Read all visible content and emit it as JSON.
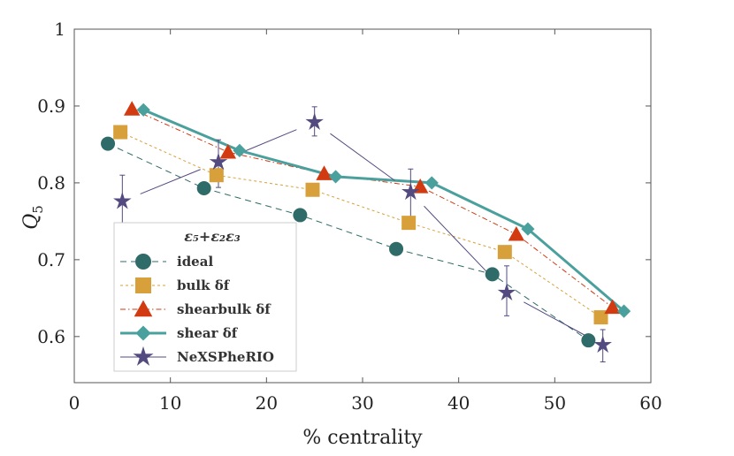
{
  "chart_data": {
    "type": "line",
    "title": "",
    "xlabel": "% centrality",
    "ylabel": "Q",
    "ylabel_sub": "5",
    "xlim": [
      0,
      60
    ],
    "ylim": [
      0.54,
      1.0
    ],
    "xticks": [
      0,
      10,
      20,
      30,
      40,
      50,
      60
    ],
    "xtick_labels": [
      "0",
      "10",
      "20",
      "30",
      "40",
      "50",
      "60"
    ],
    "yticks": [
      0.6,
      0.7,
      0.8,
      0.9,
      1.0
    ],
    "ytick_labels": [
      "0.6",
      "0.7",
      "0.8",
      "0.9",
      "1"
    ],
    "grid": false,
    "legend_position": "bottom-left",
    "legend_title": "ε₅+ε₂ε₃",
    "series": [
      {
        "name": "ideal",
        "marker": "circle",
        "color": "#2f6b68",
        "line_style": "dashed",
        "x": [
          3.5,
          13.5,
          23.5,
          33.5,
          43.5,
          53.5
        ],
        "y": [
          0.851,
          0.793,
          0.758,
          0.714,
          0.681,
          0.595
        ]
      },
      {
        "name": "bulk δf",
        "marker": "square",
        "color": "#d8a03a",
        "line_style": "dotted",
        "x": [
          4.8,
          14.8,
          24.8,
          34.8,
          44.8,
          54.8
        ],
        "y": [
          0.866,
          0.81,
          0.791,
          0.748,
          0.71,
          0.625
        ]
      },
      {
        "name": "shearbulk δf",
        "marker": "triangle",
        "color": "#d23a12",
        "line_style": "dashdot",
        "x": [
          6,
          16,
          26,
          36,
          46,
          56
        ],
        "y": [
          0.896,
          0.84,
          0.812,
          0.795,
          0.733,
          0.638
        ]
      },
      {
        "name": "shear δf",
        "marker": "diamond",
        "color": "#4aa09c",
        "line_style": "solid",
        "x": [
          7.2,
          17.2,
          27.2,
          37.2,
          47.2,
          57.2
        ],
        "y": [
          0.895,
          0.842,
          0.808,
          0.8,
          0.74,
          0.633
        ]
      },
      {
        "name": "NeXSPheRIO",
        "marker": "star",
        "color": "#534b80",
        "line_style": "solid",
        "x": [
          5,
          15,
          25,
          35,
          45,
          55
        ],
        "y": [
          0.776,
          0.827,
          0.879,
          0.788,
          0.657,
          0.589
        ],
        "err_low": [
          0.031,
          0.033,
          0.018,
          0.04,
          0.03,
          0.022
        ],
        "err_high": [
          0.034,
          0.029,
          0.02,
          0.03,
          0.035,
          0.02
        ]
      }
    ]
  }
}
